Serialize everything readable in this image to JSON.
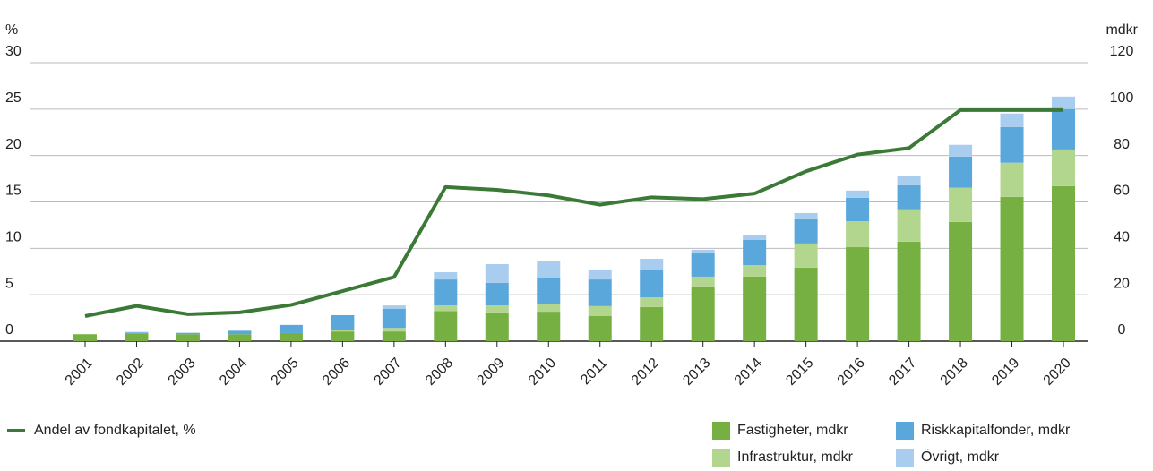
{
  "chart_data": {
    "type": "bar",
    "y_label": "%",
    "y2_label": "mdkr",
    "categories": [
      "2001",
      "2002",
      "2003",
      "2004",
      "2005",
      "2006",
      "2007",
      "2008",
      "2009",
      "2010",
      "2011",
      "2012",
      "2013",
      "2014",
      "2015",
      "2016",
      "2017",
      "2018",
      "2019",
      "2020"
    ],
    "series": [
      {
        "name": "Fastigheter, mdkr",
        "color": "#76b043",
        "axis": "y2",
        "values": [
          3,
          3.2,
          3,
          3,
          3.5,
          4.2,
          4.2,
          13,
          12.4,
          12.7,
          10.8,
          14.7,
          23.6,
          27.8,
          31.7,
          40.5,
          42.9,
          51.4,
          62.2,
          66.8
        ]
      },
      {
        "name": "Infrastruktur, mdkr",
        "color": "#b3d68f",
        "axis": "y2",
        "values": [
          0,
          0,
          0,
          0,
          0,
          0.5,
          1.5,
          2.4,
          3,
          3.5,
          4.3,
          4.2,
          4.2,
          5,
          10.4,
          11.2,
          13.9,
          14.7,
          14.7,
          15.8
        ]
      },
      {
        "name": "Riskkapitalfonder, mdkr",
        "color": "#5aa7dc",
        "axis": "y2",
        "values": [
          0,
          0.5,
          0.5,
          1.5,
          3.5,
          6.5,
          8.3,
          11.2,
          9.7,
          11.2,
          11.5,
          11.6,
          10,
          10.8,
          10.4,
          10.1,
          10.4,
          13.4,
          15.4,
          17.4
        ]
      },
      {
        "name": "Övrigt, mdkr",
        "color": "#a9cdee",
        "axis": "y2",
        "values": [
          0,
          0.3,
          0.2,
          0,
          0,
          0,
          1.4,
          3.1,
          8.1,
          7,
          4.3,
          5,
          1.6,
          2,
          2.7,
          3.1,
          3.8,
          5.1,
          5.8,
          5.4
        ]
      },
      {
        "name": "Andel av fondkapitalet, %",
        "color": "#3a7a36",
        "type": "line",
        "values": [
          2.7,
          3.8,
          2.9,
          3.1,
          3.9,
          5.4,
          6.9,
          16.6,
          16.3,
          15.7,
          14.7,
          15.5,
          15.3,
          15.9,
          18.3,
          20.1,
          20.8,
          24.9,
          24.9,
          24.9
        ]
      }
    ],
    "ylim": [
      0,
      30
    ],
    "yticks": [
      0,
      5,
      10,
      15,
      20,
      25,
      30
    ],
    "y2lim": [
      0,
      120
    ],
    "y2ticks": [
      0,
      20,
      40,
      60,
      80,
      100,
      120
    ],
    "grid": true
  }
}
